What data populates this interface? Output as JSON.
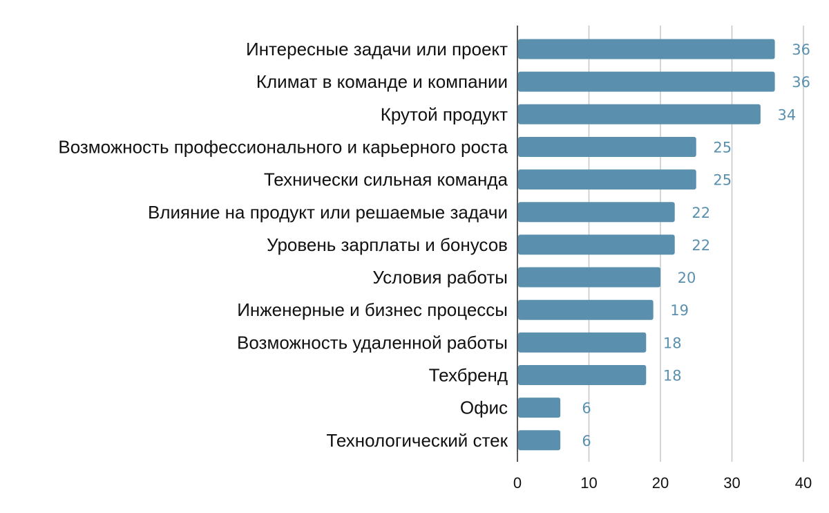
{
  "chart_data": {
    "type": "bar",
    "orientation": "horizontal",
    "categories": [
      "Интересные задачи или проект",
      "Климат в команде и компании",
      "Крутой продукт",
      "Возможность профессионального и карьерного роста",
      "Технически сильная команда",
      "Влияние на продукт или решаемые задачи",
      "Уровень зарплаты и бонусов",
      "Условия работы",
      "Инженерные и бизнес процессы",
      "Возможность удаленной работы",
      "Техбренд",
      "Офис",
      "Технологический стек"
    ],
    "values": [
      36,
      36,
      34,
      25,
      25,
      22,
      22,
      20,
      19,
      18,
      18,
      6,
      6
    ],
    "value_labels": [
      "36",
      "36",
      "34",
      "25",
      "25",
      "22",
      "22",
      "20",
      "19",
      "18",
      "18",
      "6",
      "6"
    ],
    "xticks": [
      "0",
      "10",
      "20",
      "30",
      "40"
    ],
    "xlim": [
      0,
      40
    ],
    "title": "",
    "xlabel": "",
    "ylabel": "",
    "grid": "vertical",
    "legend": "none",
    "colors": {
      "bar": "#5a90ae",
      "value_label": "#5a90ae",
      "grid": "#c6c6c6",
      "axis": "#222222"
    }
  }
}
